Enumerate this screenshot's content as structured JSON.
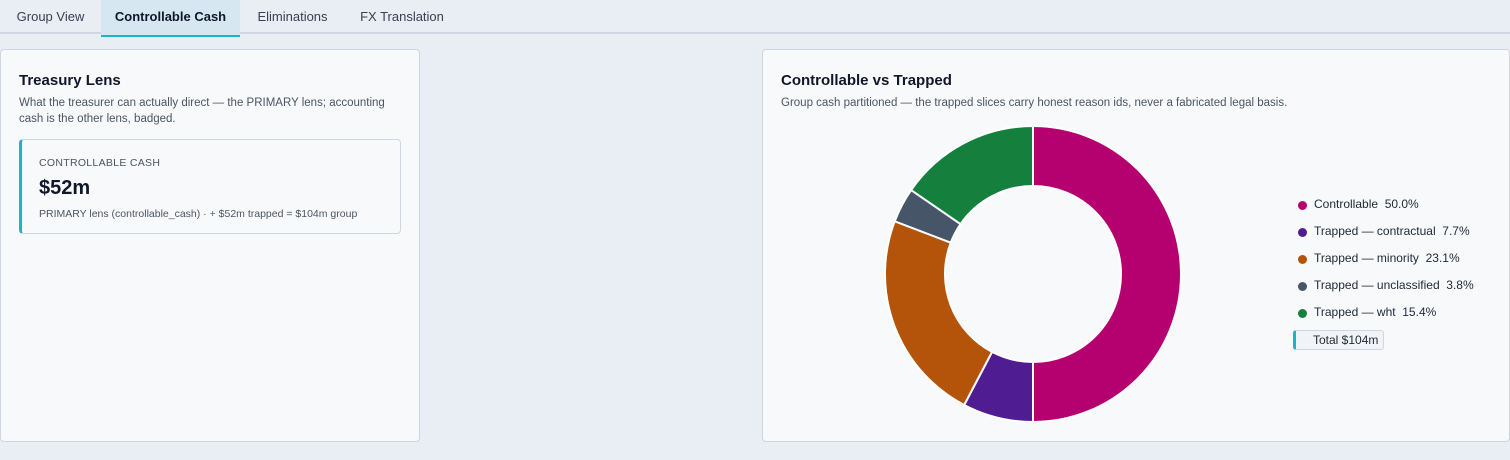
{
  "tabs": [
    {
      "label": "Group View",
      "active": false
    },
    {
      "label": "Controllable Cash",
      "active": true
    },
    {
      "label": "Eliminations",
      "active": false
    },
    {
      "label": "FX Translation",
      "active": false
    }
  ],
  "treasury": {
    "title": "Treasury Lens",
    "subtitle": "What the treasurer can actually direct — the PRIMARY lens; accounting cash is the other lens, badged.",
    "kpi": {
      "label": "CONTROLLABLE CASH",
      "value": "$52m",
      "footnote": "PRIMARY lens (controllable_cash) · + $52m trapped = $104m group"
    }
  },
  "split": {
    "title": "Controllable vs Trapped",
    "subtitle": "Group cash partitioned — the trapped slices carry honest reason ids, never a fabricated legal basis.",
    "total_label": "Total  $104m"
  },
  "chart_data": {
    "type": "pie",
    "donut": true,
    "total": "$104m",
    "legend_position": "right",
    "slices": [
      {
        "name": "Controllable",
        "label": "50.0%",
        "value": 50.0,
        "color": "#b5006f"
      },
      {
        "name": "Trapped — contractual",
        "label": "7.7%",
        "value": 7.7,
        "color": "#4f1d91"
      },
      {
        "name": "Trapped — minority",
        "label": "23.1%",
        "value": 23.1,
        "color": "#b4540b"
      },
      {
        "name": "Trapped — unclassified",
        "label": "3.8%",
        "value": 3.8,
        "color": "#475569"
      },
      {
        "name": "Trapped — wht",
        "label": "15.4%",
        "value": 15.4,
        "color": "#15803d"
      }
    ]
  }
}
